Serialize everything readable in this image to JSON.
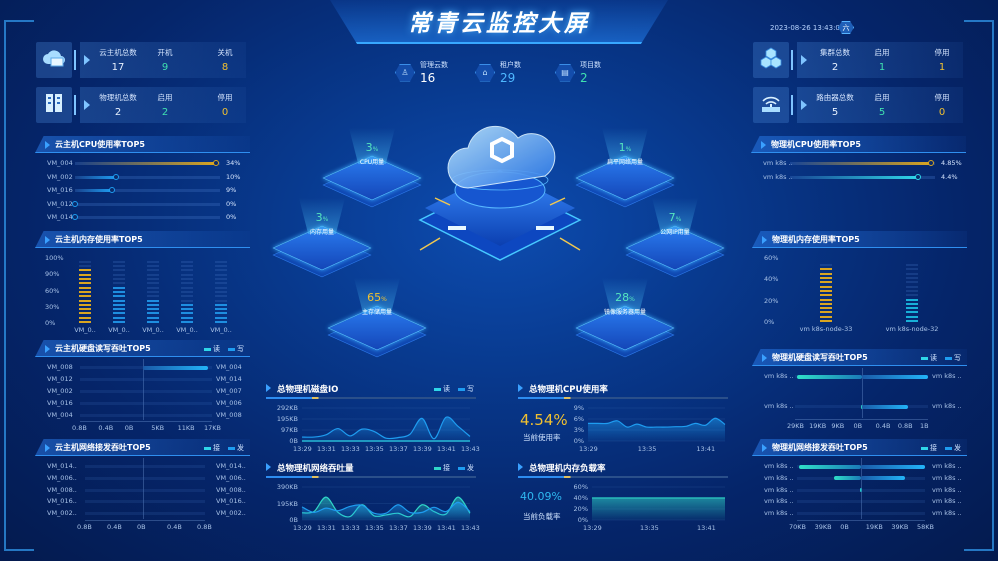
{
  "header": {
    "title": "常青云监控大屏",
    "datetime": "2023-08-26 13:43:08",
    "weekday": "六"
  },
  "colors": {
    "green": "#3fe0b0",
    "yellow": "#f0c030",
    "cyan": "#2fd6e8",
    "blue": "#1e9cf0",
    "gold": "#d9a520"
  },
  "top_stats": [
    {
      "label": "管理云数",
      "value": "16",
      "icon": "users-icon",
      "color": "#ffffff"
    },
    {
      "label": "租户数",
      "value": "29",
      "icon": "tenant-icon",
      "color": "#4fb8ff"
    },
    {
      "label": "项目数",
      "value": "2",
      "icon": "project-icon",
      "color": "#3fe0b0"
    }
  ],
  "left_cards": [
    {
      "icon": "cloud-host-icon",
      "items": [
        {
          "label": "云主机总数",
          "value": "17"
        },
        {
          "label": "开机",
          "value": "9"
        },
        {
          "label": "关机",
          "value": "8"
        }
      ]
    },
    {
      "icon": "server-icon",
      "items": [
        {
          "label": "物理机总数",
          "value": "2"
        },
        {
          "label": "启用",
          "value": "2"
        },
        {
          "label": "停用",
          "value": "0"
        }
      ]
    }
  ],
  "right_cards": [
    {
      "icon": "cluster-cubes-icon",
      "items": [
        {
          "label": "集群总数",
          "value": "2"
        },
        {
          "label": "启用",
          "value": "1"
        },
        {
          "label": "停用",
          "value": "1"
        }
      ]
    },
    {
      "icon": "router-icon",
      "items": [
        {
          "label": "路由器总数",
          "value": "5"
        },
        {
          "label": "启用",
          "value": "5"
        },
        {
          "label": "停用",
          "value": "0"
        }
      ]
    }
  ],
  "vm_cpu": {
    "title": "云主机CPU使用率TOP5",
    "rows": [
      {
        "name": "VM_004",
        "value": 34,
        "label": "34%"
      },
      {
        "name": "VM_002",
        "value": 10,
        "label": "10%"
      },
      {
        "name": "VM_016",
        "value": 9,
        "label": "9%"
      },
      {
        "name": "VM_012",
        "value": 0,
        "label": "0%"
      },
      {
        "name": "VM_014",
        "value": 0,
        "label": "0%"
      }
    ],
    "max": 35
  },
  "vm_mem": {
    "title": "云主机内存使用率TOP5",
    "y_ticks": [
      "100%",
      "90%",
      "60%",
      "30%",
      "0%"
    ],
    "categories": [
      "VM_0..",
      "VM_0..",
      "VM_0..",
      "VM_0..",
      "VM_0.."
    ],
    "values": [
      85,
      60,
      40,
      30,
      30
    ]
  },
  "vm_disk": {
    "title": "云主机硬盘读写吞吐TOP5",
    "legend": [
      "读",
      "写"
    ],
    "left_names": [
      "VM_008",
      "VM_012",
      "VM_002",
      "VM_016",
      "VM_004"
    ],
    "right_names": [
      "VM_004",
      "VM_014",
      "VM_007",
      "VM_006",
      "VM_008"
    ],
    "left_values": [
      0,
      0,
      0,
      0,
      0
    ],
    "right_values": [
      16,
      0,
      0,
      0,
      0
    ],
    "left_max": 0.8,
    "right_max": 17,
    "axis": [
      "0.8B",
      "0.4B",
      "0B",
      "5KB",
      "11KB",
      "17KB"
    ]
  },
  "vm_net": {
    "title": "云主机网络接发吞吐TOP5",
    "legend": [
      "接",
      "发"
    ],
    "left_names": [
      "VM_014..",
      "VM_006..",
      "VM_008..",
      "VM_016..",
      "VM_002.."
    ],
    "right_names": [
      "VM_014..",
      "VM_006..",
      "VM_008..",
      "VM_016..",
      "VM_002.."
    ],
    "left_values": [
      0,
      0,
      0,
      0,
      0
    ],
    "right_values": [
      0,
      0,
      0,
      0,
      0
    ],
    "left_max": 0.8,
    "right_max": 0.8,
    "axis": [
      "0.8B",
      "0.4B",
      "0B",
      "0.4B",
      "0.8B"
    ]
  },
  "host_cpu": {
    "title": "物理机CPU使用率TOP5",
    "rows": [
      {
        "name": "vm k8s ..",
        "value": 4.85,
        "label": "4.85%"
      },
      {
        "name": "vm k8s ..",
        "value": 4.4,
        "label": "4.4%"
      }
    ],
    "max": 5
  },
  "host_mem": {
    "title": "物理机内存使用率TOP5",
    "y_ticks": [
      "60%",
      "40%",
      "20%",
      "0%"
    ],
    "categories": [
      "vm k8s-node-33",
      "vm k8s-node-32"
    ],
    "values": [
      55,
      27
    ],
    "max": 60
  },
  "host_disk": {
    "title": "物理机硬盘读写吞吐TOP5",
    "legend": [
      "读",
      "写"
    ],
    "left_names": [
      "vm k8s ..",
      "vm k8s .."
    ],
    "right_names": [
      "vm k8s ..",
      "vm k8s .."
    ],
    "left_values": [
      28,
      0.3
    ],
    "right_values": [
      1,
      0.7
    ],
    "left_max": 29,
    "right_max": 1,
    "axis": [
      "29KB",
      "19KB",
      "9KB",
      "0B",
      "0.4B",
      "0.8B",
      "1B"
    ]
  },
  "host_net": {
    "title": "物理机网络接发吞吐TOP5",
    "legend": [
      "接",
      "发"
    ],
    "left_names": [
      "vm k8s ..",
      "vm k8s ..",
      "vm k8s ..",
      "vm k8s ..",
      "vm k8s .."
    ],
    "right_names": [
      "vm k8s ..",
      "vm k8s ..",
      "vm k8s ..",
      "vm k8s ..",
      "vm k8s .."
    ],
    "left_values": [
      68,
      30,
      1,
      0,
      0
    ],
    "right_values": [
      58,
      40,
      0,
      0,
      0
    ],
    "left_max": 70,
    "right_max": 58,
    "axis": [
      "70KB",
      "39KB",
      "0B",
      "19KB",
      "39KB",
      "58KB"
    ]
  },
  "resources": [
    {
      "label": "CPU用量",
      "value": "3",
      "unit": "%",
      "color": "#55e6c0"
    },
    {
      "label": "扁平网络用量",
      "value": "1",
      "unit": "%",
      "color": "#55e6c0"
    },
    {
      "label": "内存用量",
      "value": "3",
      "unit": "%",
      "color": "#55e6c0"
    },
    {
      "label": "公网IP用量",
      "value": "7",
      "unit": "%",
      "color": "#55e6c0"
    },
    {
      "label": "主存储用量",
      "value": "65",
      "unit": "%",
      "color": "#f0c030"
    },
    {
      "label": "镜像服务器用量",
      "value": "28",
      "unit": "%",
      "color": "#55e6c0"
    }
  ],
  "chart_data": [
    {
      "id": "disk_io",
      "type": "area",
      "title": "总物理机磁盘IO",
      "x": [
        "13:29",
        "13:30",
        "13:31",
        "13:32",
        "13:33",
        "13:34",
        "13:35",
        "13:36",
        "13:37",
        "13:38",
        "13:39",
        "13:40",
        "13:41",
        "13:42",
        "13:43"
      ],
      "x_ticks": [
        "13:29",
        "13:31",
        "13:33",
        "13:35",
        "13:37",
        "13:39",
        "13:41",
        "13:43"
      ],
      "y_ticks": [
        "292KB",
        "195KB",
        "97KB",
        "0B"
      ],
      "ylim": [
        0,
        292
      ],
      "series": [
        {
          "name": "读",
          "color": "#2fd6e8",
          "values": [
            0,
            0,
            0,
            0,
            0,
            0,
            0,
            0,
            0,
            0,
            0,
            0,
            0,
            0,
            0
          ]
        },
        {
          "name": "写",
          "color": "#1e9cf0",
          "values": [
            35,
            35,
            55,
            110,
            45,
            105,
            85,
            25,
            30,
            60,
            200,
            20,
            210,
            130,
            40
          ]
        }
      ]
    },
    {
      "id": "net_io",
      "type": "area",
      "title": "总物理机网络吞吐量",
      "x": [
        "13:29",
        "13:30",
        "13:31",
        "13:32",
        "13:33",
        "13:34",
        "13:35",
        "13:36",
        "13:37",
        "13:38",
        "13:39",
        "13:40",
        "13:41",
        "13:42",
        "13:43"
      ],
      "x_ticks": [
        "13:29",
        "13:31",
        "13:33",
        "13:35",
        "13:37",
        "13:39",
        "13:41",
        "13:43"
      ],
      "y_ticks": [
        "390KB",
        "195KB",
        "0B"
      ],
      "ylim": [
        0,
        390
      ],
      "series": [
        {
          "name": "接",
          "color": "#2fd6c8",
          "values": [
            85,
            100,
            270,
            90,
            40,
            180,
            50,
            60,
            80,
            40,
            180,
            100,
            70,
            270,
            80
          ]
        },
        {
          "name": "发",
          "color": "#1e9cf0",
          "values": [
            155,
            90,
            140,
            110,
            160,
            175,
            80,
            80,
            180,
            90,
            90,
            150,
            100,
            210,
            100
          ]
        }
      ]
    },
    {
      "id": "host_cpu_rate",
      "type": "area",
      "title": "总物理机CPU使用率",
      "current_value": "4.54%",
      "current_label": "当前使用率",
      "x": [
        "13:29",
        "13:30",
        "13:31",
        "13:32",
        "13:33",
        "13:34",
        "13:35",
        "13:36",
        "13:37",
        "13:38",
        "13:39",
        "13:40",
        "13:41",
        "13:42",
        "13:43"
      ],
      "x_ticks": [
        "13:29",
        "13:35",
        "13:41"
      ],
      "y_ticks": [
        "9%",
        "6%",
        "3%",
        "0%"
      ],
      "ylim": [
        0,
        9
      ],
      "series": [
        {
          "color": "#1e9cf0",
          "values": [
            4.8,
            4.8,
            4.8,
            5.5,
            3.8,
            4.6,
            3.8,
            3.8,
            3.8,
            3.9,
            4.0,
            4.8,
            4.3,
            6.2,
            4.5
          ]
        }
      ]
    },
    {
      "id": "host_mem_load",
      "type": "area",
      "title": "总物理机内存负载率",
      "current_value": "40.09%",
      "current_label": "当前负载率",
      "x": [
        "13:29",
        "13:30",
        "13:31",
        "13:32",
        "13:33",
        "13:34",
        "13:35",
        "13:36",
        "13:37",
        "13:38",
        "13:39",
        "13:40",
        "13:41",
        "13:42",
        "13:43"
      ],
      "x_ticks": [
        "13:29",
        "13:35",
        "13:41"
      ],
      "y_ticks": [
        "60%",
        "40%",
        "20%",
        "0%"
      ],
      "ylim": [
        0,
        60
      ],
      "series": [
        {
          "color": "#2fd6c8",
          "values": [
            40.09,
            40.09,
            40.09,
            40.09,
            40.09,
            40.09,
            40.09,
            40.09,
            40.09,
            40.09,
            40.09,
            40.09,
            40.09,
            40.09,
            40.09
          ]
        }
      ]
    }
  ]
}
